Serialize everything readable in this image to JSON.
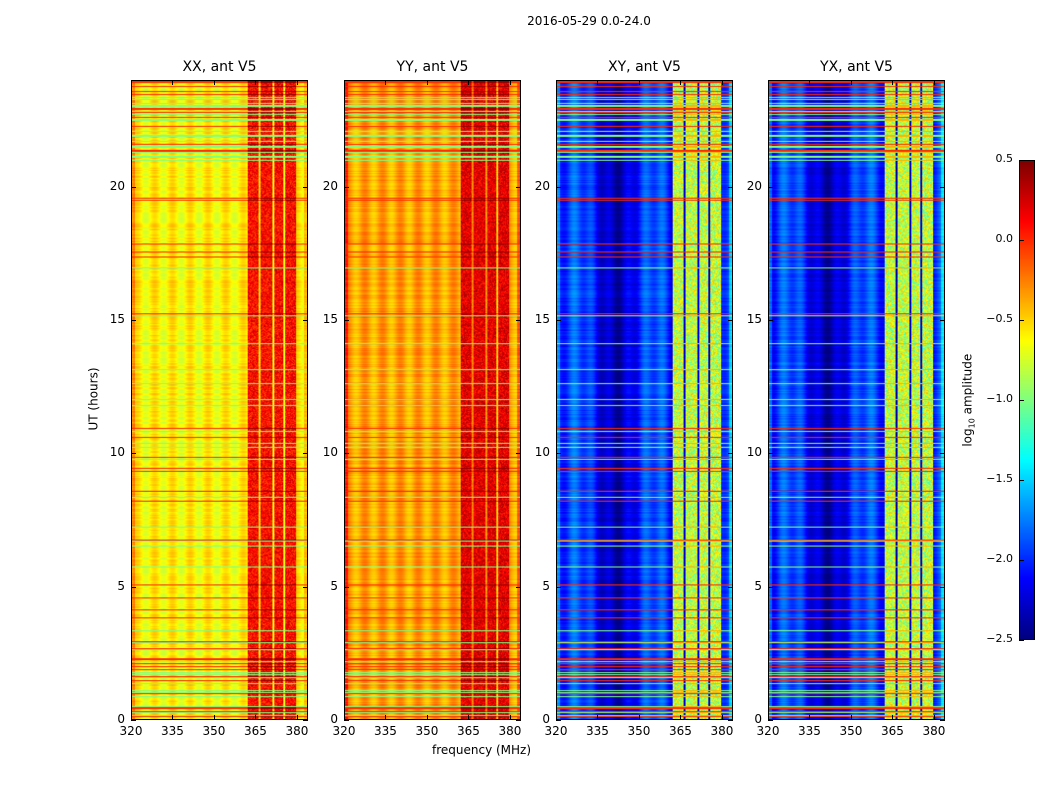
{
  "chart_data": {
    "type": "heatmap",
    "title": "2016-05-29 0.0-24.0",
    "xlabel": "frequency (MHz)",
    "ylabel": "UT (hours)",
    "xlim": [
      320,
      384
    ],
    "ylim": [
      0,
      24
    ],
    "xticks": [
      "320",
      "335",
      "350",
      "365",
      "380"
    ],
    "xtick_values": [
      320,
      335,
      350,
      365,
      380
    ],
    "yticks": [
      "0",
      "5",
      "10",
      "15",
      "20"
    ],
    "ytick_values": [
      0,
      5,
      10,
      15,
      20
    ],
    "panels": [
      {
        "title": "XX, ant V5",
        "base_level": -0.6,
        "rfi_level": 0.1
      },
      {
        "title": "YY, ant V5",
        "base_level": -0.35,
        "rfi_level": 0.2
      },
      {
        "title": "XY, ant V5",
        "base_level": -2.1,
        "rfi_level": -0.8
      },
      {
        "title": "YX, ant V5",
        "base_level": -2.1,
        "rfi_level": -0.8
      }
    ],
    "rfi_channels_mhz": [
      [
        362,
        366
      ],
      [
        367,
        371
      ],
      [
        372,
        375
      ],
      [
        376,
        380
      ]
    ],
    "colorbar": {
      "label": "log10 amplitude",
      "label_main": "log",
      "label_sub": "10",
      "label_rest": " amplitude",
      "colormap": "jet",
      "range": [
        -2.5,
        0.5
      ],
      "ticks": [
        "0.5",
        "0.0",
        "−0.5",
        "−1.0",
        "−1.5",
        "−2.0",
        "−2.5"
      ],
      "tick_values": [
        0.5,
        0.0,
        -0.5,
        -1.0,
        -1.5,
        -2.0,
        -2.5
      ]
    }
  }
}
